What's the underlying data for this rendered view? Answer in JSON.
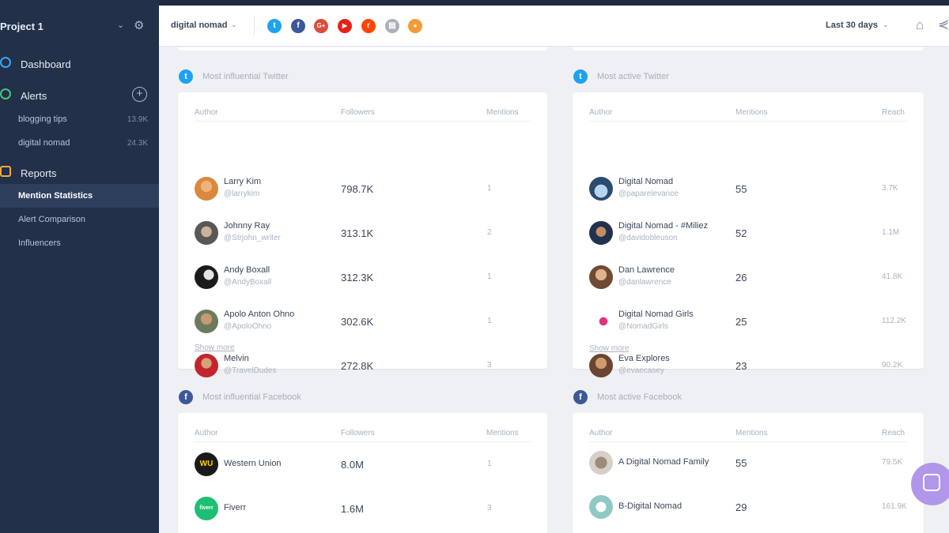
{
  "sidebar": {
    "project": "Project 1",
    "sections": {
      "dashboard": "Dashboard",
      "alerts": "Alerts",
      "reports": "Reports"
    },
    "alerts": [
      {
        "label": "blogging tips",
        "count": "13.9K"
      },
      {
        "label": "digital nomad",
        "count": "24.3K"
      }
    ],
    "reports": [
      {
        "label": "Mention Statistics"
      },
      {
        "label": "Alert Comparison"
      },
      {
        "label": "Influencers"
      }
    ]
  },
  "header": {
    "keyword": "digital nomad",
    "period": "Last 30 days",
    "sources": [
      {
        "name": "twitter",
        "color": "#1da1f2",
        "glyph": "t"
      },
      {
        "name": "facebook",
        "color": "#3b5998",
        "glyph": "f"
      },
      {
        "name": "google-plus",
        "color": "#dd4b39",
        "glyph": "G+"
      },
      {
        "name": "youtube",
        "color": "#e62117",
        "glyph": "▶"
      },
      {
        "name": "reddit",
        "color": "#ff4500",
        "glyph": "r"
      },
      {
        "name": "news",
        "color": "#a9b0b9",
        "glyph": "▤"
      },
      {
        "name": "rss",
        "color": "#f29c38",
        "glyph": "●"
      }
    ]
  },
  "colors": {
    "twitter": "#1da1f2",
    "facebook": "#3b5998",
    "sidebar": "#22304a",
    "chat": "#b196ea"
  },
  "panels": {
    "tw_influential": {
      "title": "Most influential  Twitter",
      "headers": [
        "Author",
        "Followers",
        "Mentions"
      ],
      "show_more": "Show more",
      "rows": [
        {
          "name": "Larry Kim",
          "handle": "@larrykim",
          "value": "798.7K",
          "mentions": "1"
        },
        {
          "name": "Johnny Ray",
          "handle": "@Strjohn_writer",
          "value": "313.1K",
          "mentions": "2"
        },
        {
          "name": "Andy Boxall",
          "handle": "@AndyBoxall",
          "value": "312.3K",
          "mentions": "1"
        },
        {
          "name": "Apolo Anton Ohno",
          "handle": "@ApoloOhno",
          "value": "302.6K",
          "mentions": "1"
        },
        {
          "name": "Melvin",
          "handle": "@TravelDudes",
          "value": "272.8K",
          "mentions": "3"
        }
      ]
    },
    "tw_active": {
      "title": "Most active  Twitter",
      "headers": [
        "Author",
        "Mentions",
        "Reach"
      ],
      "show_more": "Show more",
      "rows": [
        {
          "name": "Digital Nomad",
          "handle": "@paparelevance",
          "value": "55",
          "reach": "3.7K"
        },
        {
          "name": "Digital Nomad - #Miliez",
          "handle": "@davidobleuson",
          "value": "52",
          "reach": "1.1M"
        },
        {
          "name": "Dan Lawrence",
          "handle": "@danlawrence",
          "value": "26",
          "reach": "41.8K"
        },
        {
          "name": "Digital Nomad Girls",
          "handle": "@NomadGirls",
          "value": "25",
          "reach": "112.2K"
        },
        {
          "name": "Eva Explores",
          "handle": "@evaecasey",
          "value": "23",
          "reach": "90.2K"
        }
      ]
    },
    "fb_influential": {
      "title": "Most influential  Facebook",
      "headers": [
        "Author",
        "Followers",
        "Mentions"
      ],
      "rows": [
        {
          "name": "Western Union",
          "value": "8.0M",
          "mentions": "1",
          "logo": "WU"
        },
        {
          "name": "Fiverr",
          "value": "1.6M",
          "mentions": "3",
          "logo": "fiverr"
        }
      ]
    },
    "fb_active": {
      "title": "Most active  Facebook",
      "headers": [
        "Author",
        "Mentions",
        "Reach"
      ],
      "rows": [
        {
          "name": "A Digital Nomad Family",
          "value": "55",
          "reach": "79.5K"
        },
        {
          "name": "B-Digital Nomad",
          "value": "29",
          "reach": "161.9K"
        }
      ]
    }
  }
}
